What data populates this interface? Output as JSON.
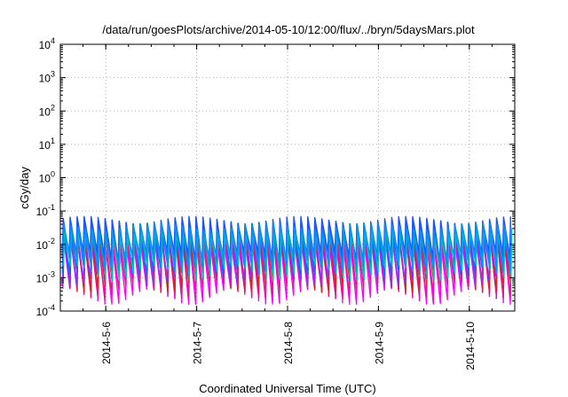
{
  "chart_data": {
    "type": "line",
    "title": "/data/run/goesPlots/archive/2014-05-10/12:00/flux/../bryn/5daysMars.plot",
    "xlabel": "Coordinated Universal Time (UTC)",
    "ylabel": "cGy/day",
    "y_scale": "log",
    "ylim": [
      0.0001,
      10000
    ],
    "y_ticks": [
      {
        "base": "10",
        "exp": "-4",
        "value": 0.0001
      },
      {
        "base": "10",
        "exp": "-3",
        "value": 0.001
      },
      {
        "base": "10",
        "exp": "-2",
        "value": 0.01
      },
      {
        "base": "10",
        "exp": "-1",
        "value": 0.1
      },
      {
        "base": "10",
        "exp": "0",
        "value": 1
      },
      {
        "base": "10",
        "exp": "1",
        "value": 10
      },
      {
        "base": "10",
        "exp": "2",
        "value": 100
      },
      {
        "base": "10",
        "exp": "3",
        "value": 1000
      },
      {
        "base": "10",
        "exp": "4",
        "value": 10000
      }
    ],
    "xlim": [
      "2014-05-05 12:00",
      "2014-05-10 12:00"
    ],
    "x_ticks": [
      "2014-5-6",
      "2014-5-7",
      "2014-5-8",
      "2014-5-9",
      "2014-5-10"
    ],
    "grid": true,
    "legend": "none",
    "sawtooth": {
      "cycles_per_day": 13,
      "time_offset_days": 0.02
    },
    "series": [
      {
        "color": "#ff00ff",
        "peak": 0.012,
        "trough": 0.0004,
        "phase": 0.1
      },
      {
        "color": "#ee1090",
        "peak": 0.014,
        "trough": 0.0006,
        "phase": 0.12
      },
      {
        "color": "#dd2020",
        "peak": 0.02,
        "trough": 0.0009,
        "phase": 0.14
      },
      {
        "color": "#9030ff",
        "peak": 0.03,
        "trough": 0.0015,
        "phase": 0.06
      },
      {
        "color": "#0070ff",
        "peak": 0.045,
        "trough": 0.003,
        "phase": 0.04
      },
      {
        "color": "#2050ff",
        "peak": 0.055,
        "trough": 0.005,
        "phase": 0.02
      },
      {
        "color": "#00c0c0",
        "peak": 0.025,
        "trough": 0.002,
        "phase": 0.2
      },
      {
        "color": "#0090ff",
        "peak": 0.035,
        "trough": 0.004,
        "phase": 0.08
      }
    ]
  }
}
